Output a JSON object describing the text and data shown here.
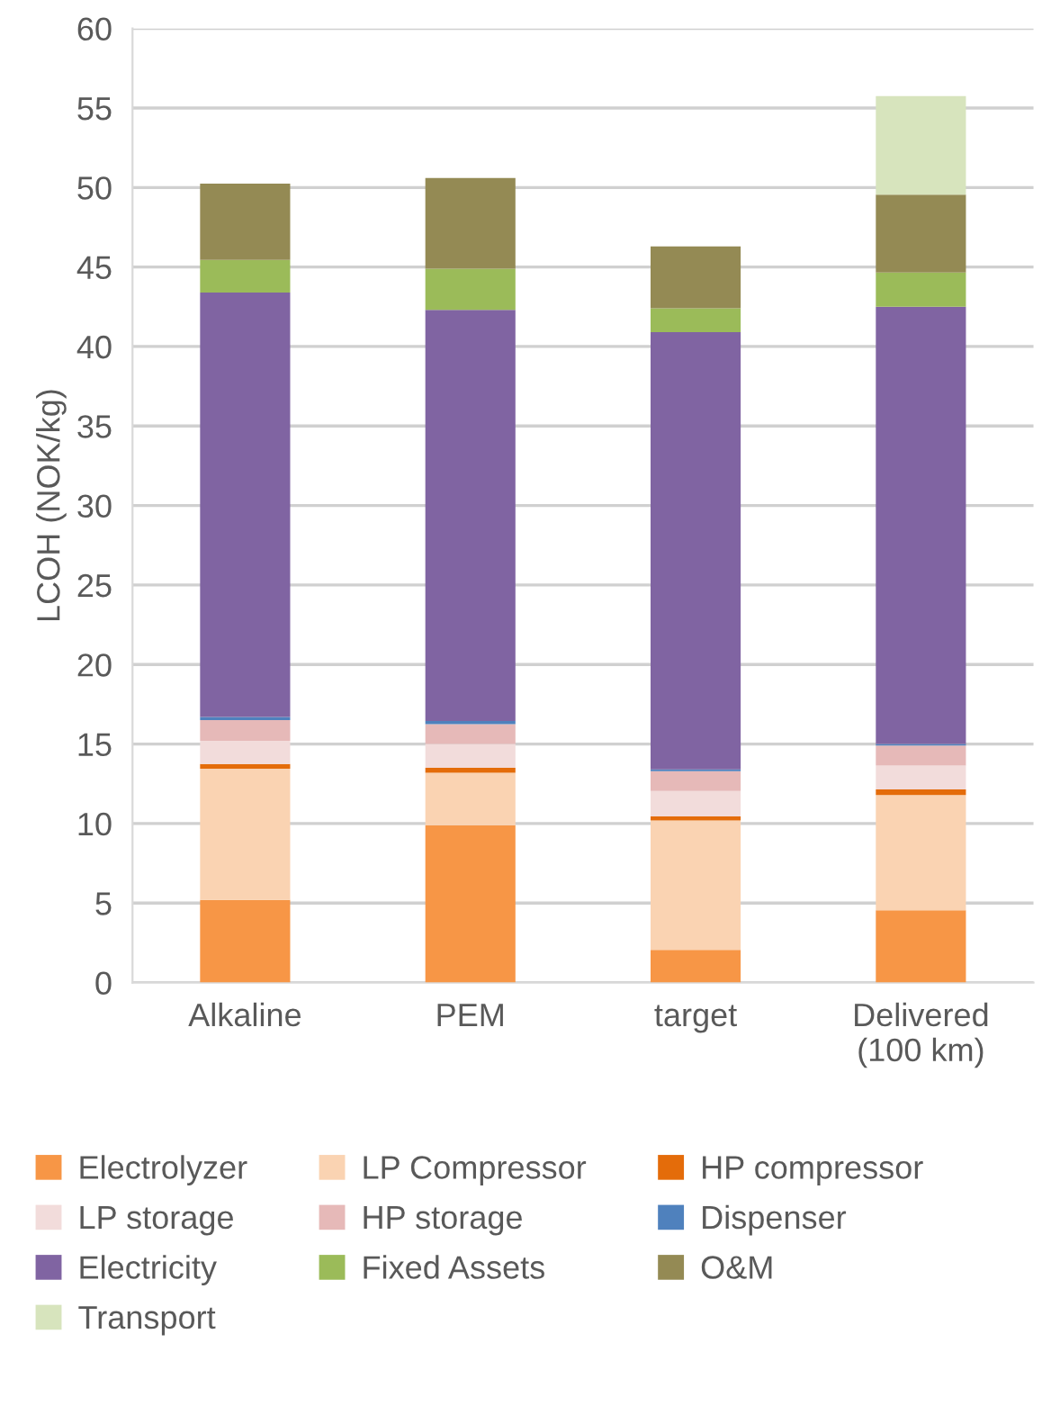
{
  "chart_data": {
    "type": "bar",
    "stacked": true,
    "ylabel": "LCOH (NOK/kg)",
    "categories": [
      "Alkaline",
      "PEM",
      "target",
      "Delivered\n(100 km)"
    ],
    "series": [
      {
        "name": "Electrolyzer",
        "color": "#f79646",
        "values": [
          5.2,
          9.9,
          2.05,
          4.55
        ]
      },
      {
        "name": "LP Compressor",
        "color": "#fad3b2",
        "values": [
          8.25,
          3.3,
          8.15,
          7.25
        ]
      },
      {
        "name": "HP compressor",
        "color": "#e46c0a",
        "values": [
          0.3,
          0.3,
          0.25,
          0.35
        ]
      },
      {
        "name": "LP storage",
        "color": "#f2dcdb",
        "values": [
          1.45,
          1.5,
          1.6,
          1.5
        ]
      },
      {
        "name": "HP storage",
        "color": "#e6b9b8",
        "values": [
          1.3,
          1.25,
          1.25,
          1.25
        ]
      },
      {
        "name": "Dispenser",
        "color": "#4f81bd",
        "values": [
          0.2,
          0.2,
          0.1,
          0.1
        ]
      },
      {
        "name": "Electricity",
        "color": "#8064a2",
        "values": [
          26.7,
          25.85,
          27.5,
          27.5
        ]
      },
      {
        "name": "Fixed Assets",
        "color": "#9bbb59",
        "values": [
          2.05,
          2.6,
          1.5,
          2.15
        ]
      },
      {
        "name": "O&M",
        "color": "#948a54",
        "values": [
          4.8,
          5.7,
          3.9,
          4.9
        ]
      },
      {
        "name": "Transport",
        "color": "#d7e4bd",
        "values": [
          0,
          0,
          0,
          6.2
        ]
      }
    ],
    "ylim": [
      0,
      60
    ],
    "yticks": [
      0,
      5,
      10,
      15,
      20,
      25,
      30,
      35,
      40,
      45,
      50,
      55,
      60
    ],
    "grid": "y",
    "legend": "bottom"
  }
}
